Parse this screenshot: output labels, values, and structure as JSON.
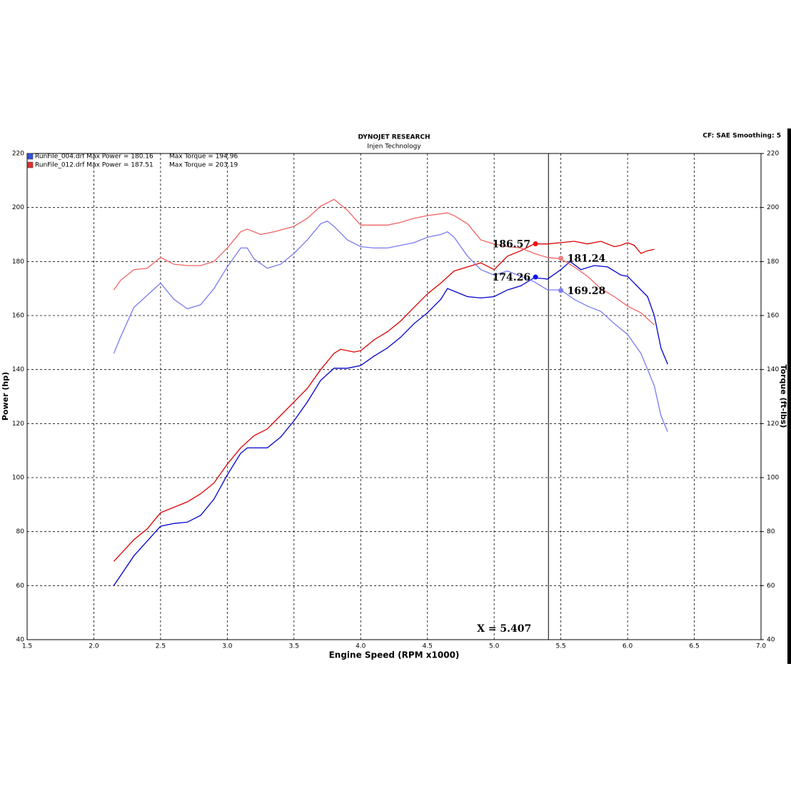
{
  "chart_data": {
    "type": "line",
    "title": "DYNOJET RESEARCH",
    "subtitle": "Injen Technology",
    "settings_text": "CF: SAE  Smoothing: 5",
    "xlabel": "Engine Speed (RPM x1000)",
    "ylabel": "Power (hp)",
    "y2label": "Torque (ft-lbs)",
    "xlim": [
      1.5,
      7.0
    ],
    "xticks": [
      1.5,
      {
        "value": 2,
        "label": "2.0"
      },
      2.5,
      {
        "value": 3,
        "label": "3.0"
      },
      3.5,
      {
        "value": 4,
        "label": "4.0"
      },
      4.5,
      {
        "value": 5,
        "label": "5.0"
      },
      5.5,
      {
        "value": 6,
        "label": "6.0"
      },
      6.5,
      {
        "value": 7,
        "label": "7.0"
      }
    ],
    "ylim": [
      40,
      220
    ],
    "yticks": [
      40,
      60,
      80,
      100,
      120,
      140,
      160,
      180,
      200,
      220
    ],
    "y2lim": [
      40,
      220
    ],
    "y2ticks": [
      40,
      60,
      80,
      100,
      120,
      140,
      160,
      180,
      200,
      220
    ],
    "grid": true,
    "legend": [
      {
        "file": "RunFile_004.drf Max Power = 180.16",
        "torque": "Max Torque = 194.96",
        "color": "#3050e0"
      },
      {
        "file": "RunFile_012.drf Max Power = 187.51",
        "torque": "Max Torque = 203.19",
        "color": "#e03030"
      }
    ],
    "series": [
      {
        "color": "#0000cc",
        "x": [
          2.15,
          2.3,
          2.5,
          2.6,
          2.7,
          2.8,
          2.9,
          3.0,
          3.1,
          3.15,
          3.3,
          3.4,
          3.5,
          3.6,
          3.7,
          3.8,
          3.9,
          4.0,
          4.1,
          4.2,
          4.3,
          4.4,
          4.5,
          4.6,
          4.65,
          4.7,
          4.8,
          4.9,
          5.0,
          5.1,
          5.2,
          5.3,
          5.4,
          5.5,
          5.57,
          5.65,
          5.75,
          5.85,
          5.95,
          6.0,
          6.05,
          6.15,
          6.2,
          6.25,
          6.3
        ],
        "values": [
          60,
          71,
          82,
          83,
          83.5,
          86,
          92,
          101,
          109,
          111,
          111,
          115,
          121,
          128,
          136,
          140.5,
          140.5,
          141.5,
          145,
          148,
          152,
          157,
          161,
          166,
          170,
          169,
          167,
          166.5,
          167,
          169.5,
          171,
          174,
          173.5,
          177,
          180,
          177,
          178.5,
          178,
          175,
          174.5,
          172,
          167,
          160,
          148,
          142
        ]
      },
      {
        "color": "#dd0000",
        "x": [
          2.15,
          2.3,
          2.4,
          2.5,
          2.6,
          2.7,
          2.8,
          2.9,
          3.0,
          3.1,
          3.2,
          3.3,
          3.4,
          3.5,
          3.6,
          3.7,
          3.8,
          3.85,
          3.95,
          4.0,
          4.1,
          4.2,
          4.3,
          4.4,
          4.5,
          4.6,
          4.7,
          4.8,
          4.9,
          5.0,
          5.1,
          5.2,
          5.3,
          5.4,
          5.5,
          5.6,
          5.7,
          5.8,
          5.9,
          5.95,
          6.0,
          6.05,
          6.1,
          6.15,
          6.2
        ],
        "values": [
          69,
          77,
          81,
          87,
          89,
          91,
          94,
          98,
          105,
          111,
          115.5,
          118,
          123,
          128,
          133,
          140,
          146,
          147.5,
          146.5,
          147,
          151,
          154,
          158,
          163,
          168,
          172,
          176.5,
          178,
          179.5,
          177,
          182,
          184,
          186.5,
          186.5,
          187,
          187.5,
          186.5,
          187.5,
          185.5,
          186,
          187,
          186,
          183,
          184,
          184.5
        ]
      },
      {
        "color": "#7a7af0",
        "axis": "y2",
        "x": [
          2.15,
          2.2,
          2.3,
          2.4,
          2.5,
          2.6,
          2.7,
          2.8,
          2.9,
          3.0,
          3.1,
          3.15,
          3.2,
          3.3,
          3.4,
          3.5,
          3.6,
          3.7,
          3.75,
          3.8,
          3.9,
          4.0,
          4.1,
          4.2,
          4.3,
          4.4,
          4.5,
          4.6,
          4.65,
          4.7,
          4.8,
          4.9,
          5.0,
          5.1,
          5.2,
          5.3,
          5.4,
          5.5,
          5.6,
          5.7,
          5.8,
          5.9,
          6.0,
          6.1,
          6.2,
          6.25,
          6.3
        ],
        "values": [
          146,
          152,
          163,
          167.5,
          172,
          166,
          162.5,
          164,
          170,
          178,
          185,
          185,
          181,
          177.5,
          179,
          183,
          188,
          194,
          195,
          193,
          188,
          185.5,
          185,
          185,
          186,
          187,
          189,
          190,
          191,
          189,
          182,
          177,
          175,
          176.5,
          174.5,
          172.5,
          169.5,
          169.5,
          166,
          163.5,
          161.5,
          157,
          153,
          146,
          134,
          123,
          117
        ]
      },
      {
        "color": "#f06464",
        "axis": "y2",
        "x": [
          2.15,
          2.2,
          2.3,
          2.4,
          2.5,
          2.6,
          2.7,
          2.8,
          2.9,
          3.0,
          3.1,
          3.15,
          3.25,
          3.35,
          3.5,
          3.6,
          3.7,
          3.8,
          3.9,
          4.0,
          4.1,
          4.2,
          4.3,
          4.4,
          4.5,
          4.65,
          4.7,
          4.8,
          4.9,
          5.0,
          5.1,
          5.2,
          5.3,
          5.4,
          5.5,
          5.6,
          5.7,
          5.8,
          5.9,
          6.0,
          6.1,
          6.2
        ],
        "values": [
          169.5,
          173,
          177,
          177.5,
          181.5,
          179,
          178.5,
          178.5,
          180,
          185,
          191,
          192,
          190,
          191,
          193,
          196,
          200.5,
          203,
          199,
          193.5,
          193.5,
          193.5,
          194.5,
          196,
          197,
          198,
          197,
          194,
          188,
          186.5,
          185.5,
          185,
          183,
          181.5,
          181,
          178,
          174.5,
          170,
          167,
          163.5,
          161,
          156.5
        ]
      }
    ],
    "markers": [
      {
        "x": 5.31,
        "value": 186.57,
        "color": "#ee1111"
      },
      {
        "x": 5.5,
        "value": 181.24,
        "color": "#f08080"
      },
      {
        "x": 5.31,
        "value": 174.26,
        "color": "#1111ee"
      },
      {
        "x": 5.5,
        "value": 169.28,
        "color": "#8080f0"
      }
    ],
    "cursor": {
      "x": 5.407,
      "label": "X = 5.407"
    }
  }
}
